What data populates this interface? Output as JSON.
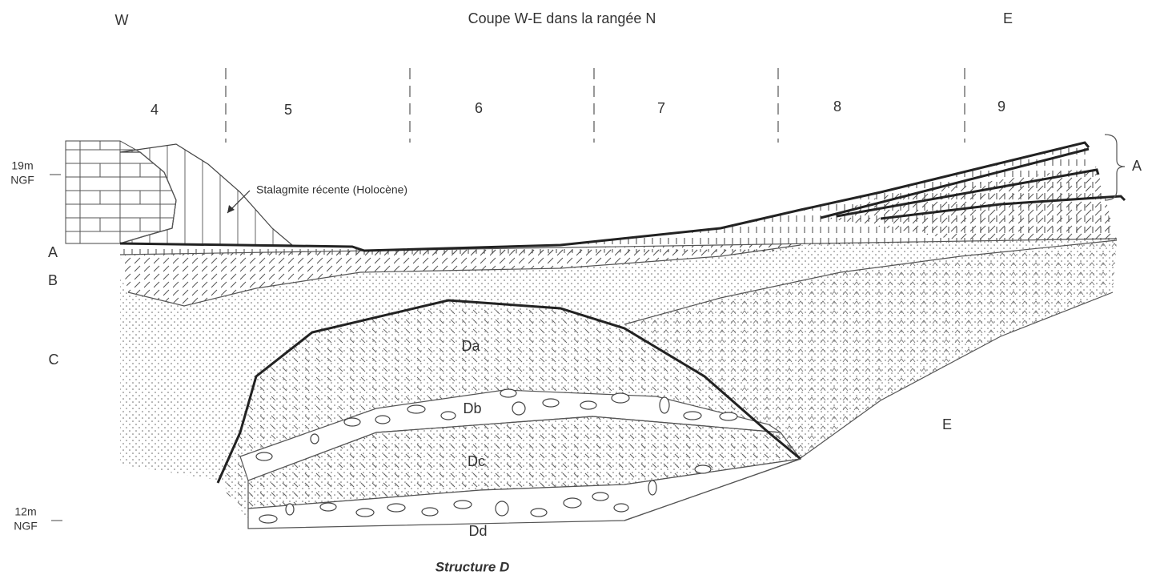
{
  "header": {
    "title": "Coupe W-E dans la rangée N",
    "west": "W",
    "east": "E"
  },
  "columns": [
    "4",
    "5",
    "6",
    "7",
    "8",
    "9"
  ],
  "elevations": [
    {
      "level": "19m",
      "datum": "NGF"
    },
    {
      "level": "12m",
      "datum": "NGF"
    }
  ],
  "annotation": "Stalagmite récente (Holocène)",
  "layers": [
    "A",
    "B",
    "C"
  ],
  "right_label": "A",
  "units": [
    "Da",
    "Db",
    "Dc",
    "Dd",
    "E"
  ],
  "caption": "Structure D"
}
